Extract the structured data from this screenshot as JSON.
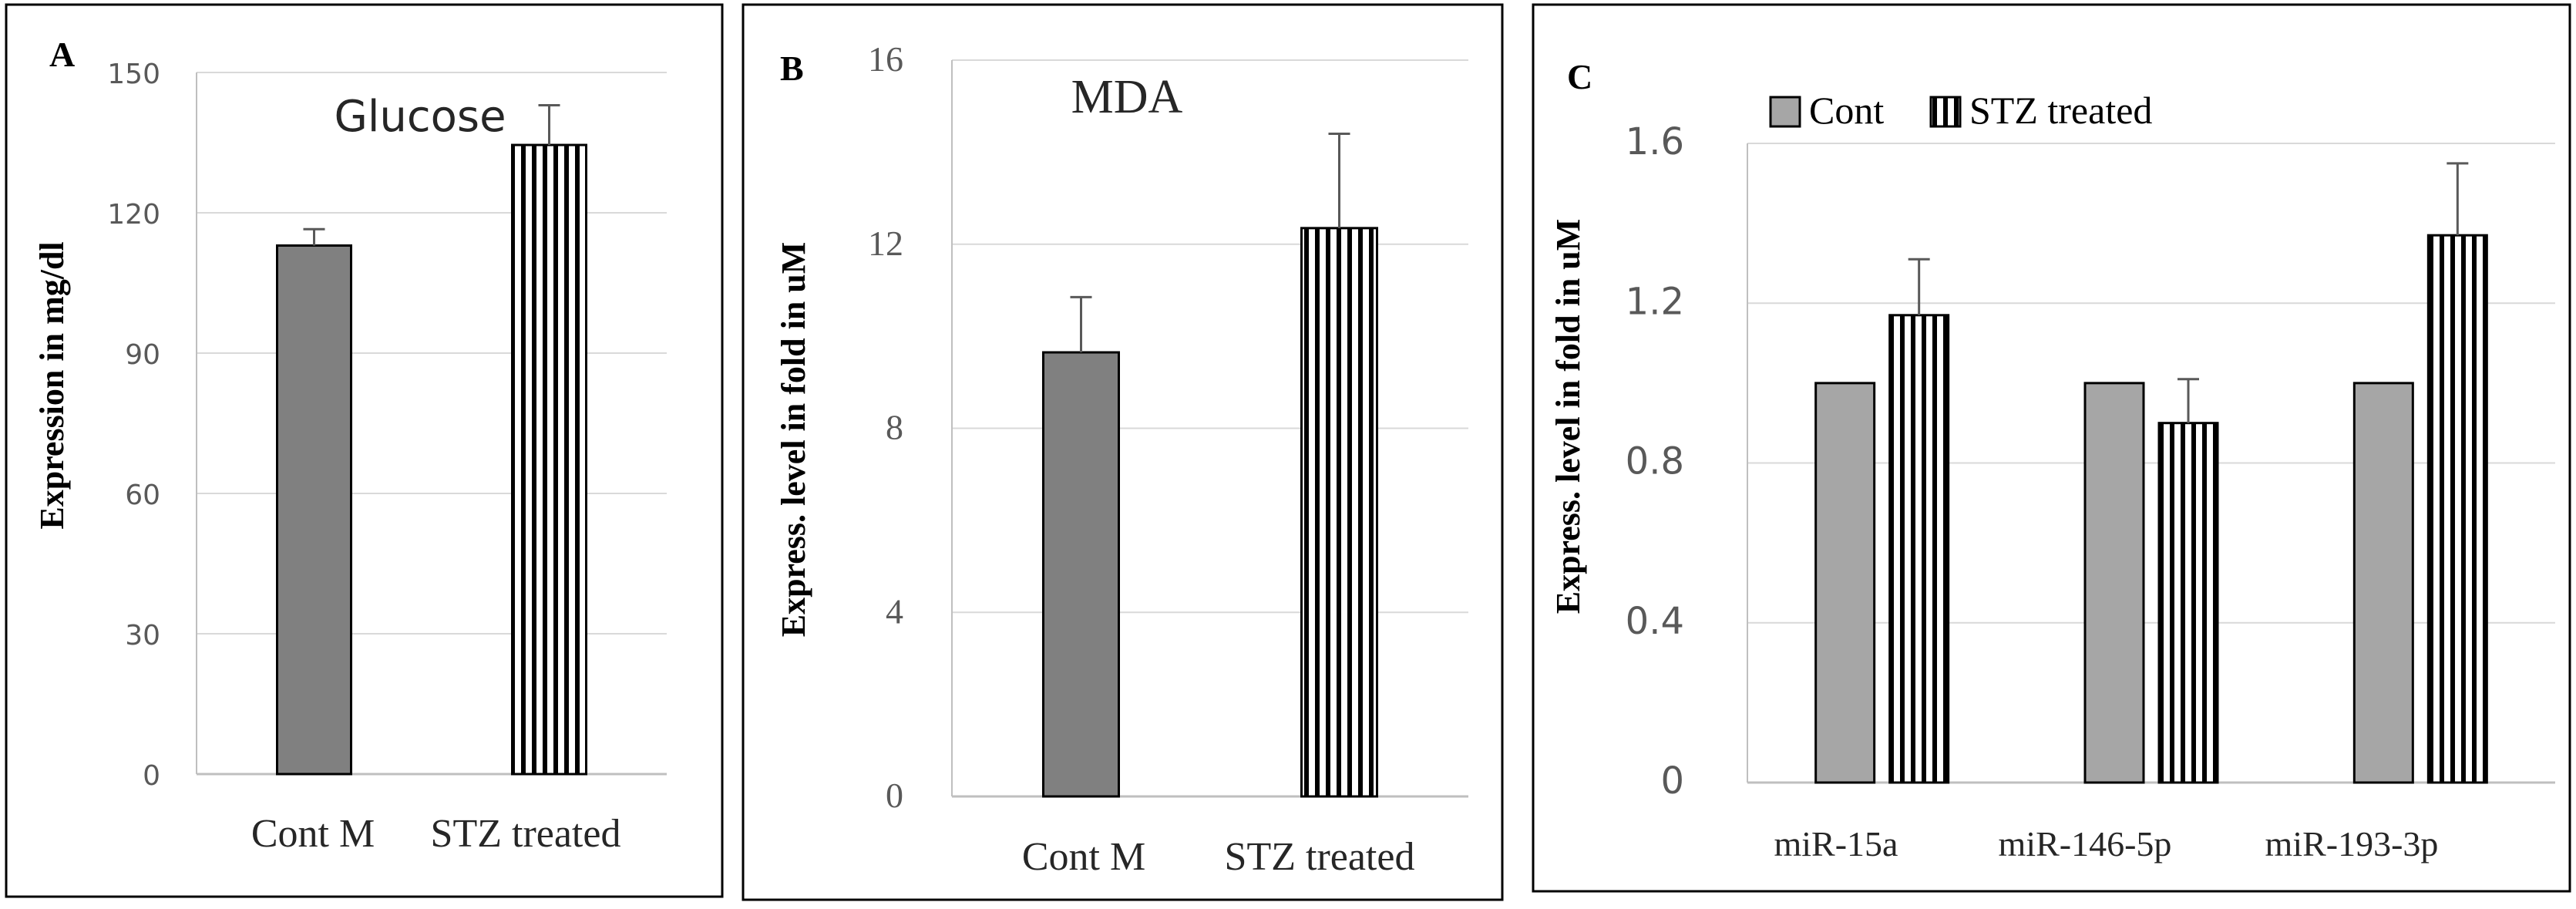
{
  "colors": {
    "grid": "#d9d9d9",
    "axis": "#bfbfbf",
    "dark_bar": "#808080",
    "light_bar": "#a6a6a6",
    "hatch": "#000000",
    "frame": "#000000",
    "tick_text": "#595959",
    "error_bar": "#595959"
  },
  "chart_data": [
    {
      "panel": "A",
      "type": "bar",
      "title": "Glucose",
      "ylabel": "Expression in mg/dl",
      "ylim": [
        0,
        150
      ],
      "yticks": [
        0,
        30,
        60,
        90,
        120,
        150
      ],
      "grid": true,
      "categories": [
        "Cont M",
        "STZ treated"
      ],
      "series": [
        {
          "name": "Cont M",
          "values": [
            113,
            null
          ],
          "errors": [
            3.5,
            null
          ],
          "style": "solid-dark"
        },
        {
          "name": "STZ treated",
          "values": [
            null,
            134.5
          ],
          "errors": [
            null,
            8.5
          ],
          "style": "hatched"
        }
      ]
    },
    {
      "panel": "B",
      "type": "bar",
      "title": "MDA",
      "ylabel": "Express. level in fold in uM",
      "ylim": [
        0,
        16
      ],
      "yticks": [
        0,
        4,
        8,
        12,
        16
      ],
      "grid": true,
      "categories": [
        "Cont M",
        "STZ treated"
      ],
      "series": [
        {
          "name": "Cont M",
          "values": [
            9.65,
            null
          ],
          "errors": [
            1.2,
            null
          ],
          "style": "solid-dark"
        },
        {
          "name": "STZ treated",
          "values": [
            null,
            12.35
          ],
          "errors": [
            null,
            2.05
          ],
          "style": "hatched"
        }
      ]
    },
    {
      "panel": "C",
      "type": "bar",
      "title": "",
      "ylabel": "Express. level in fold in uM",
      "ylim": [
        0,
        1.6
      ],
      "yticks": [
        "0",
        "0.4",
        "0.8",
        "1.2",
        "1.6"
      ],
      "grid": true,
      "legend_placement": "top-left",
      "categories": [
        "miR-15a",
        "miR-146-5p",
        "miR-193-3p"
      ],
      "series": [
        {
          "name": "Cont",
          "values": [
            1.0,
            1.0,
            1.0
          ],
          "errors": [
            0,
            0,
            0
          ],
          "style": "solid-light"
        },
        {
          "name": "STZ treated",
          "values": [
            1.17,
            0.9,
            1.37
          ],
          "errors": [
            0.14,
            0.11,
            0.18
          ],
          "style": "hatched"
        }
      ]
    }
  ]
}
